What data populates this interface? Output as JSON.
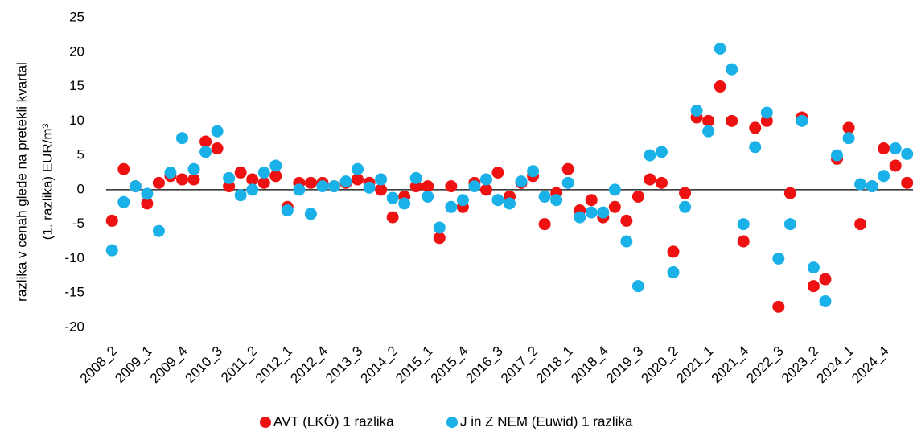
{
  "chart_data": {
    "type": "scatter",
    "ylabel": [
      "razlika v cenah glede na pretekli kvartal",
      "(1. razlika) EUR/m³"
    ],
    "categories": [
      "2008_2",
      null,
      null,
      "2009_1",
      null,
      null,
      "2009_4",
      null,
      null,
      "2010_3",
      null,
      null,
      "2011_2",
      null,
      null,
      "2012_1",
      null,
      null,
      "2012_4",
      null,
      null,
      "2013_3",
      null,
      null,
      "2014_2",
      null,
      null,
      "2015_1",
      null,
      null,
      "2015_4",
      null,
      null,
      "2016_3",
      null,
      null,
      "2017_2",
      null,
      null,
      "2018_1",
      null,
      null,
      "2018_4",
      null,
      null,
      "2019_3",
      null,
      null,
      "2020_2",
      null,
      null,
      "2021_1",
      null,
      null,
      "2021_4",
      null,
      null,
      "2022_3",
      null,
      null,
      "2023_2",
      null,
      null,
      "2024_1",
      null,
      null,
      "2024_4",
      null,
      null
    ],
    "series": [
      {
        "name": "AVT (LKÖ) 1 razlika",
        "color": "#ee1111",
        "values": [
          -4.5,
          3,
          0.5,
          -2,
          1,
          2,
          1.5,
          1.5,
          7,
          6,
          0.5,
          2.5,
          1.5,
          1,
          2,
          -2.5,
          1,
          1,
          1,
          0.5,
          1,
          1.5,
          1,
          0,
          -4,
          -1,
          0.5,
          0.5,
          -7,
          0.5,
          -2.5,
          1,
          0,
          2.5,
          -1,
          1,
          2,
          -5,
          -0.5,
          3,
          -3,
          -1.5,
          -4,
          -2.5,
          -4.5,
          -1,
          1.5,
          1,
          -9,
          -0.5,
          10.5,
          10,
          15,
          10,
          -7.5,
          9,
          10,
          -17,
          -0.5,
          10.5,
          -14,
          -13,
          4.5,
          9,
          -5,
          0.5,
          6,
          3.5,
          1
        ]
      },
      {
        "name": "J in Z NEM (Euwid) 1 razlika",
        "color": "#1ab0e8",
        "values": [
          -8.8,
          -1.8,
          0.5,
          -0.6,
          -6,
          2.5,
          7.5,
          3,
          5.5,
          8.5,
          1.7,
          -0.8,
          0,
          2.5,
          3.5,
          -3,
          0,
          -3.5,
          0.5,
          0.5,
          1.2,
          3,
          0.3,
          1.5,
          -1.2,
          -2,
          1.7,
          -1,
          -5.5,
          -2.5,
          -1.5,
          0.5,
          1.5,
          -1.5,
          -2,
          1.2,
          2.7,
          -1,
          -1.5,
          1,
          -4,
          -3.3,
          -3.3,
          0,
          -7.5,
          -14,
          5,
          5.5,
          -12,
          -2.5,
          11.5,
          8.5,
          20.5,
          17.5,
          -5,
          6.2,
          11.2,
          -10,
          -5,
          10,
          -11.3,
          -16.2,
          5,
          7.5,
          0.8,
          0.5,
          2,
          6,
          5.2
        ]
      }
    ],
    "ylim": [
      -20,
      25
    ],
    "yticks": [
      -20,
      -15,
      -10,
      -5,
      0,
      5,
      10,
      15,
      20,
      25
    ],
    "grid": false,
    "legend": "bottom"
  }
}
